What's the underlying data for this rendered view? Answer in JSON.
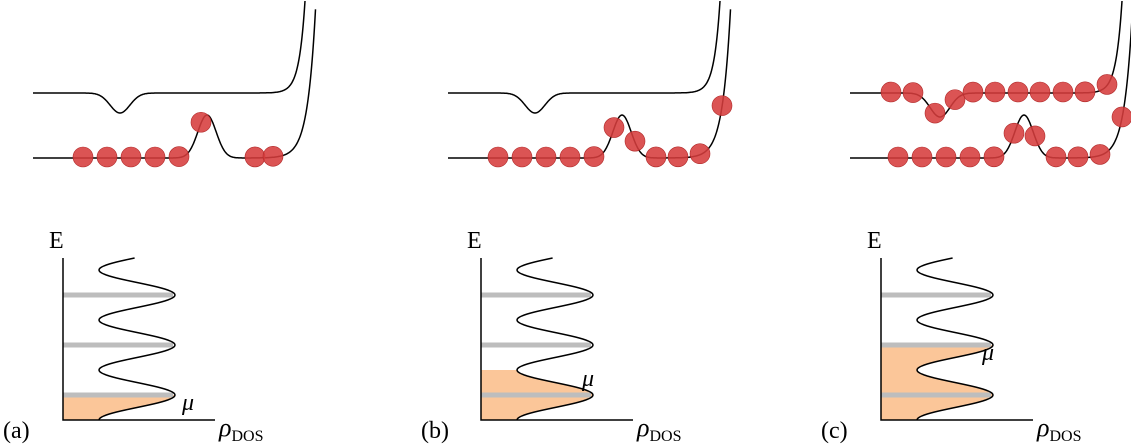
{
  "energy_label": "E",
  "dos_symbol": "ρ",
  "dos_subscript": "DOS",
  "panels": [
    {
      "label": "(a)",
      "mu": "μ"
    },
    {
      "label": "(b)",
      "mu": "μ"
    },
    {
      "label": "(c)",
      "mu": "μ"
    }
  ]
}
